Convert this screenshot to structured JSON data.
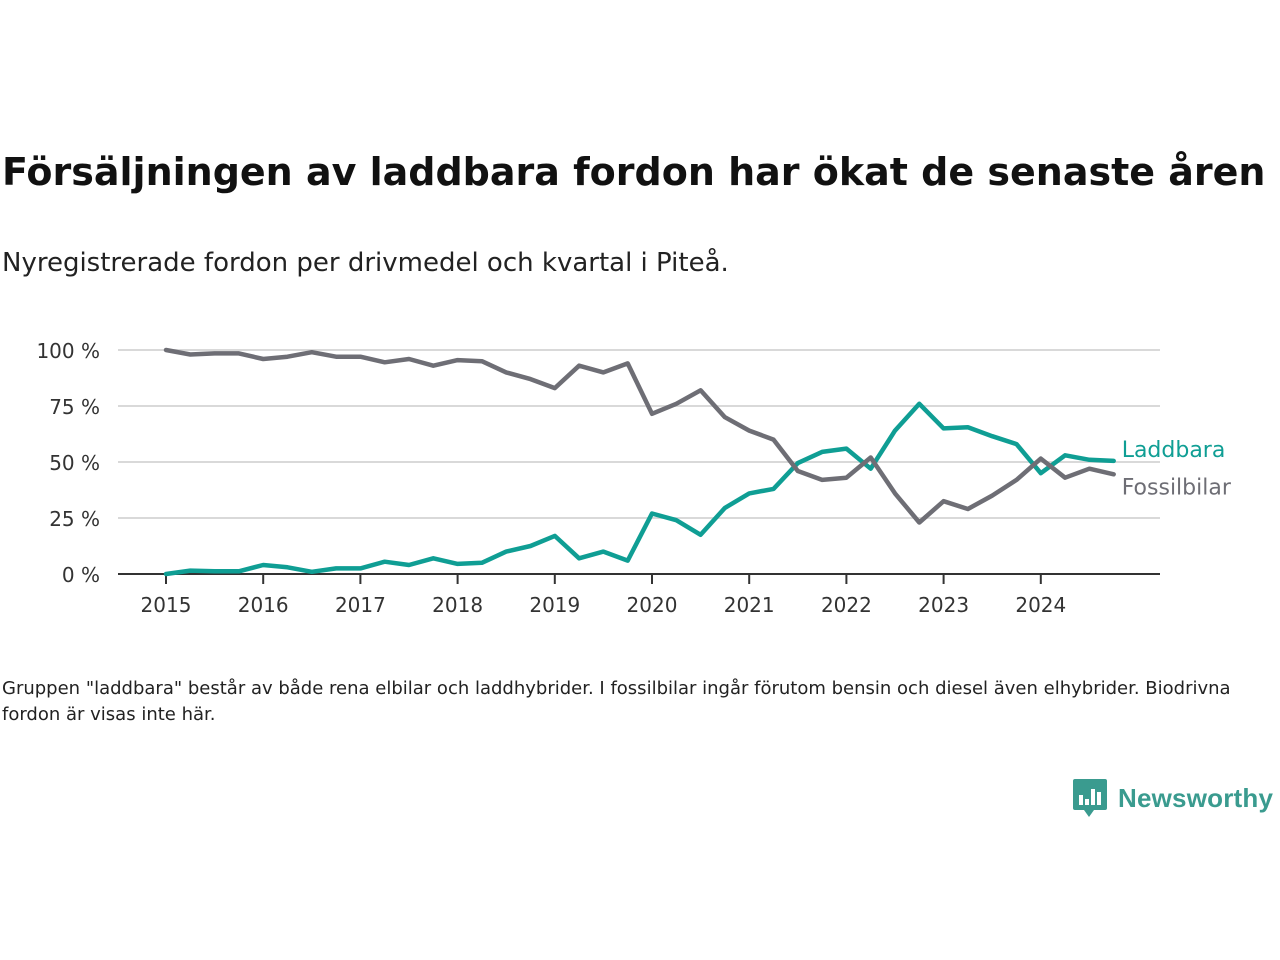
{
  "title": "Försäljningen av laddbara fordon har ökat de senaste åren",
  "subtitle": "Nyregistrerade fordon per drivmedel och kvartal i Piteå.",
  "note": "Gruppen \"laddbara\" består av både rena elbilar och laddhybrider. I fossilbilar ingår förutom bensin och diesel även elhybrider. Biodrivna fordon är visas inte här.",
  "brand": {
    "name": "Newsworthy",
    "color": "#3a9b8f"
  },
  "chart_data": {
    "type": "line",
    "ylim": [
      0,
      100
    ],
    "yticks": [
      0,
      25,
      50,
      75,
      100
    ],
    "ytick_labels": [
      "0 %",
      "25 %",
      "50 %",
      "75 %",
      "100 %"
    ],
    "xticks": [
      2015,
      2016,
      2017,
      2018,
      2019,
      2020,
      2021,
      2022,
      2023,
      2024
    ],
    "xtick_labels": [
      "2015",
      "2016",
      "2017",
      "2018",
      "2019",
      "2020",
      "2021",
      "2022",
      "2023",
      "2024"
    ],
    "grid": true,
    "x": [
      2015.0,
      2015.25,
      2015.5,
      2015.75,
      2016.0,
      2016.25,
      2016.5,
      2016.75,
      2017.0,
      2017.25,
      2017.5,
      2017.75,
      2018.0,
      2018.25,
      2018.5,
      2018.75,
      2019.0,
      2019.25,
      2019.5,
      2019.75,
      2020.0,
      2020.25,
      2020.5,
      2020.75,
      2021.0,
      2021.25,
      2021.5,
      2021.75,
      2022.0,
      2022.25,
      2022.5,
      2022.75,
      2023.0,
      2023.25,
      2023.5,
      2023.75,
      2024.0,
      2024.25,
      2024.5,
      2024.75
    ],
    "series": [
      {
        "name": "Laddbara",
        "color": "#0f9e94",
        "values": [
          0,
          1.5,
          1.2,
          1.2,
          4,
          3,
          1,
          2.5,
          2.5,
          5.5,
          4,
          7,
          4.5,
          5,
          10,
          12.5,
          17,
          7,
          10,
          6,
          27,
          24,
          17.5,
          29.5,
          36,
          38,
          49.5,
          54.5,
          56,
          47,
          64,
          76,
          65,
          65.5,
          61.5,
          58,
          45,
          53,
          51,
          50.5
        ]
      },
      {
        "name": "Fossilbilar",
        "color": "#6e6e75",
        "values": [
          100,
          98,
          98.5,
          98.5,
          96,
          97,
          99,
          97,
          97,
          94.5,
          96,
          93,
          95.5,
          95,
          90,
          87,
          83,
          93,
          90,
          94,
          71.5,
          76,
          82,
          70,
          64,
          60,
          46,
          42,
          43,
          52,
          36,
          23,
          32.5,
          29,
          35,
          42,
          51.5,
          43,
          47,
          44.5
        ]
      }
    ]
  }
}
